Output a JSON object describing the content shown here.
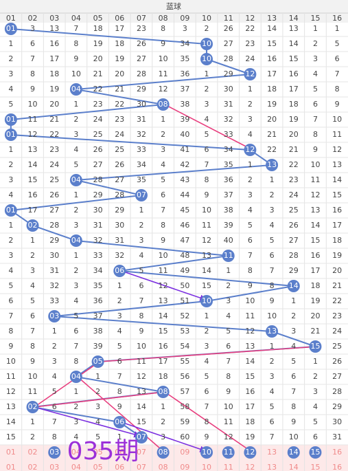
{
  "header": {
    "title": "蓝球",
    "columns": [
      "01",
      "02",
      "03",
      "04",
      "05",
      "06",
      "07",
      "08",
      "09",
      "10",
      "11",
      "12",
      "13",
      "14",
      "15",
      "16"
    ]
  },
  "rows": [
    [
      "01",
      3,
      13,
      7,
      18,
      17,
      23,
      8,
      3,
      2,
      26,
      22,
      14,
      13,
      1,
      1
    ],
    [
      1,
      6,
      16,
      8,
      19,
      18,
      26,
      9,
      34,
      "10",
      27,
      23,
      15,
      14,
      2,
      5
    ],
    [
      2,
      7,
      17,
      9,
      20,
      19,
      27,
      10,
      35,
      "10",
      28,
      24,
      16,
      15,
      3,
      6
    ],
    [
      3,
      8,
      18,
      10,
      21,
      20,
      28,
      11,
      36,
      1,
      29,
      "12",
      17,
      16,
      4,
      7
    ],
    [
      4,
      9,
      19,
      "04",
      22,
      21,
      29,
      12,
      37,
      2,
      30,
      1,
      18,
      17,
      5,
      8
    ],
    [
      5,
      10,
      20,
      1,
      23,
      22,
      30,
      "08",
      38,
      3,
      31,
      2,
      19,
      18,
      6,
      9
    ],
    [
      "01",
      11,
      21,
      2,
      24,
      23,
      31,
      1,
      39,
      4,
      32,
      3,
      20,
      19,
      7,
      10
    ],
    [
      "01",
      12,
      22,
      3,
      25,
      24,
      32,
      2,
      40,
      5,
      33,
      4,
      21,
      20,
      8,
      11
    ],
    [
      1,
      13,
      23,
      4,
      26,
      25,
      33,
      3,
      41,
      6,
      34,
      "12",
      22,
      21,
      9,
      12
    ],
    [
      2,
      14,
      24,
      5,
      27,
      26,
      34,
      4,
      42,
      7,
      35,
      1,
      "13",
      22,
      10,
      13
    ],
    [
      3,
      15,
      25,
      "04",
      28,
      27,
      35,
      5,
      43,
      8,
      36,
      2,
      1,
      23,
      11,
      14
    ],
    [
      4,
      16,
      26,
      1,
      29,
      28,
      "07",
      6,
      44,
      9,
      37,
      3,
      2,
      24,
      12,
      15
    ],
    [
      "01",
      17,
      27,
      2,
      30,
      29,
      1,
      7,
      45,
      10,
      38,
      4,
      3,
      25,
      13,
      16
    ],
    [
      1,
      "02",
      28,
      3,
      31,
      30,
      2,
      8,
      46,
      11,
      39,
      5,
      4,
      26,
      14,
      17
    ],
    [
      2,
      1,
      29,
      "04",
      32,
      31,
      3,
      9,
      47,
      12,
      40,
      6,
      5,
      27,
      15,
      18
    ],
    [
      3,
      2,
      30,
      1,
      33,
      32,
      4,
      10,
      48,
      13,
      "11",
      7,
      6,
      28,
      16,
      19
    ],
    [
      4,
      3,
      31,
      2,
      34,
      "06",
      5,
      11,
      49,
      14,
      1,
      8,
      7,
      29,
      17,
      20
    ],
    [
      5,
      4,
      32,
      3,
      35,
      1,
      6,
      12,
      50,
      15,
      2,
      9,
      8,
      "14",
      18,
      21
    ],
    [
      6,
      5,
      33,
      4,
      36,
      2,
      7,
      13,
      51,
      "10",
      3,
      10,
      9,
      1,
      19,
      22
    ],
    [
      7,
      6,
      "03",
      5,
      37,
      3,
      8,
      14,
      52,
      1,
      4,
      11,
      10,
      2,
      20,
      23
    ],
    [
      8,
      7,
      1,
      6,
      38,
      4,
      9,
      15,
      53,
      2,
      5,
      12,
      "13",
      3,
      21,
      24
    ],
    [
      9,
      8,
      2,
      7,
      39,
      5,
      10,
      16,
      54,
      3,
      6,
      13,
      1,
      4,
      "15",
      25
    ],
    [
      10,
      9,
      3,
      8,
      "05",
      6,
      11,
      17,
      55,
      4,
      7,
      14,
      2,
      5,
      1,
      26
    ],
    [
      11,
      10,
      4,
      "04",
      1,
      7,
      12,
      18,
      56,
      5,
      8,
      15,
      3,
      6,
      2,
      27
    ],
    [
      12,
      11,
      5,
      1,
      2,
      8,
      13,
      "08",
      57,
      6,
      9,
      16,
      4,
      7,
      3,
      28
    ],
    [
      13,
      "02",
      6,
      2,
      3,
      9,
      14,
      1,
      58,
      7,
      10,
      17,
      5,
      8,
      4,
      29
    ],
    [
      14,
      1,
      7,
      3,
      4,
      "06",
      15,
      2,
      59,
      8,
      11,
      18,
      6,
      9,
      5,
      30
    ],
    [
      15,
      2,
      8,
      4,
      5,
      1,
      "07",
      3,
      60,
      9,
      12,
      19,
      7,
      10,
      6,
      31
    ]
  ],
  "footer_rows": [
    [
      "01",
      "02",
      {
        "text": "03",
        "ball": true
      },
      "04",
      "05",
      "06",
      "07",
      {
        "text": "08",
        "ball": true
      },
      "09",
      {
        "text": "10",
        "ball": true
      },
      {
        "text": "11",
        "ball": true
      },
      {
        "text": "12",
        "ball": true
      },
      "13",
      {
        "text": "14",
        "ball": true
      },
      {
        "text": "15",
        "ball": true
      },
      "16"
    ],
    [
      "01",
      "02",
      "03",
      "04",
      "05",
      "06",
      "07",
      "08",
      "09",
      "10",
      "11",
      "12",
      "13",
      "14",
      "15",
      "16"
    ]
  ],
  "overlay": "035期"
}
